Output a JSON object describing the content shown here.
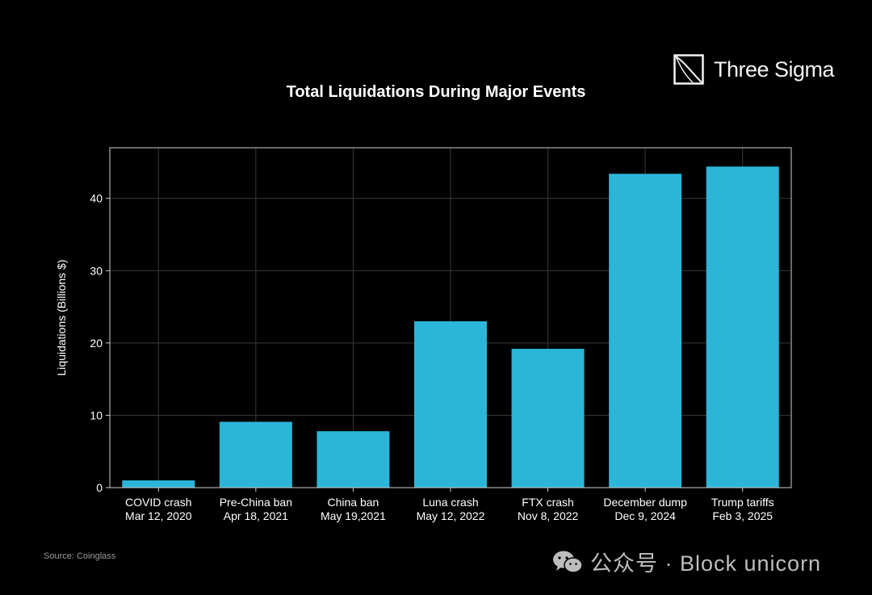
{
  "brand": {
    "name": "Three Sigma",
    "logo_icon": "three-sigma-logo"
  },
  "source": "Source: Coinglass",
  "watermark": {
    "text": "公众号 · Block unicorn",
    "icon": "wechat-icon"
  },
  "colors": {
    "background": "#000000",
    "bar": "#2bb5d8",
    "grid": "#3a3a3a",
    "axis": "#cfcfcf",
    "text": "#ffffff"
  },
  "chart_data": {
    "type": "bar",
    "title": "Total Liquidations During Major Events",
    "xlabel": "",
    "ylabel": "Liquidations (Billions $)",
    "ylim": [
      0,
      47
    ],
    "yticks": [
      0,
      10,
      20,
      30,
      40
    ],
    "grid": true,
    "categories": [
      {
        "event": "COVID crash",
        "date": "Mar 12, 2020"
      },
      {
        "event": "Pre-China ban",
        "date": "Apr 18, 2021"
      },
      {
        "event": "China ban",
        "date": "May 19,2021"
      },
      {
        "event": "Luna crash",
        "date": "May 12, 2022"
      },
      {
        "event": "FTX crash",
        "date": "Nov 8, 2022"
      },
      {
        "event": "December dump",
        "date": "Dec 9, 2024"
      },
      {
        "event": "Trump tariffs",
        "date": "Feb 3, 2025"
      }
    ],
    "values": [
      1.0,
      9.1,
      7.8,
      23.0,
      19.2,
      43.4,
      44.4
    ]
  }
}
